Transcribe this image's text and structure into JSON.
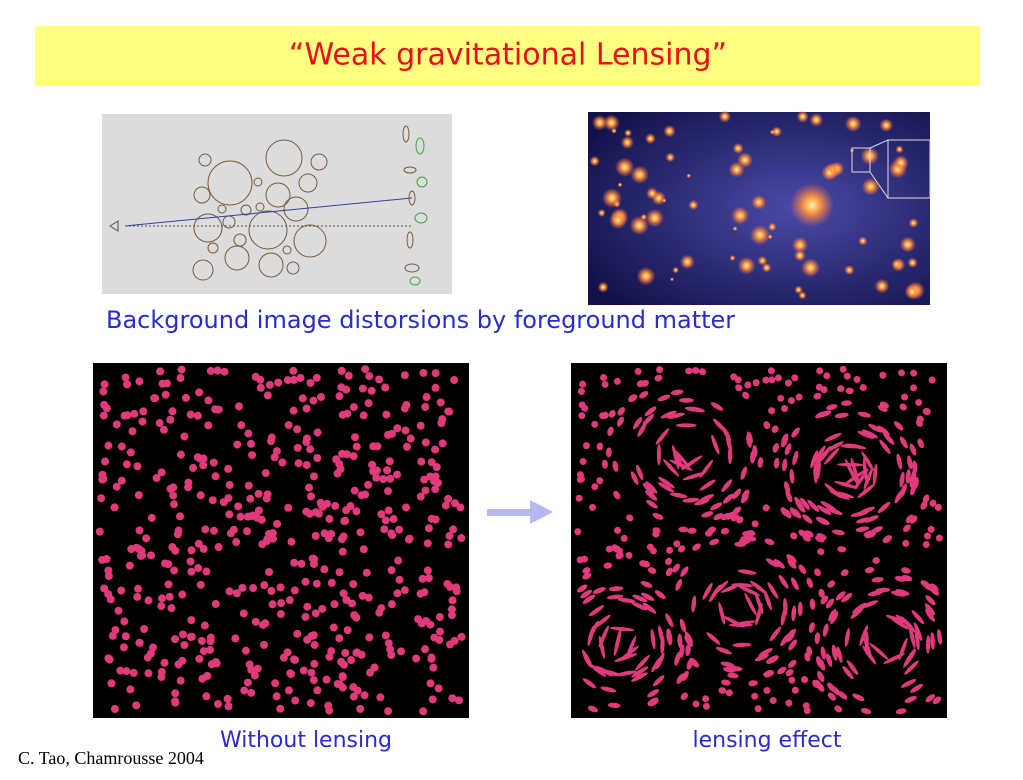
{
  "slide": {
    "title": "“Weak gravitational Lensing”",
    "caption": "Background image distorsions by foreground matter",
    "left_label": "Without lensing",
    "right_label": "lensing effect",
    "footer": "C. Tao,  Chamrousse 2004"
  }
}
